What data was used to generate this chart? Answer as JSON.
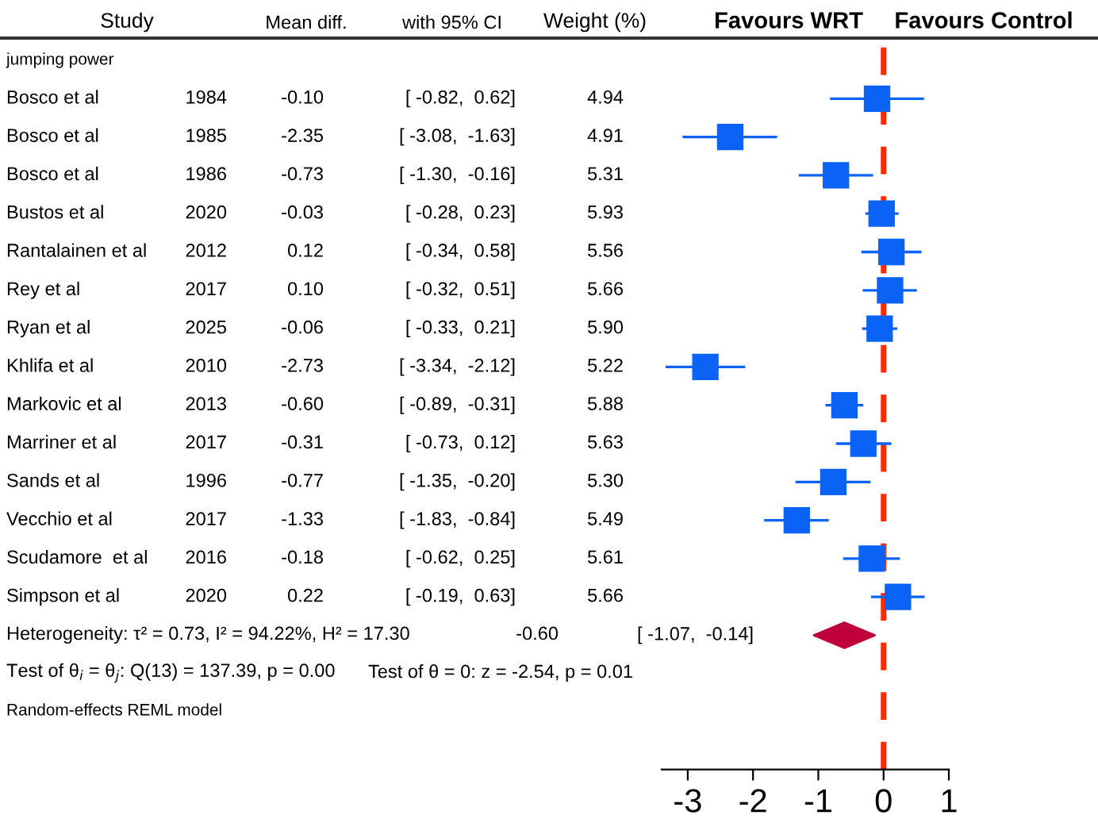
{
  "chart_data": {
    "type": "scatter",
    "orientation": "horizontal",
    "categories": [
      null,
      "Bosco et al 1984",
      "Bosco et al 1985",
      "Bosco et al 1986",
      "Bustos et al 2020",
      "Rantalainen et al 2012",
      "Rey et al 2017",
      "Ryan et al 2025",
      "Khlifa et al 2010",
      "Markovic et al 2013",
      "Marriner et al 2017",
      "Sands et al 1996",
      "Vecchio et al 2017",
      "Scudamore  et al 2016",
      "Simpson et al 2020",
      null,
      null,
      null,
      null
    ],
    "series": [
      {
        "color": "#0b63f6",
        "marker": "square",
        "values": [
          null,
          -0.1,
          -2.35,
          -0.73,
          -0.03,
          0.12,
          0.1,
          -0.06,
          -2.73,
          -0.6,
          -0.31,
          -0.77,
          -1.33,
          -0.18,
          0.22,
          null,
          null,
          null,
          null
        ],
        "errors": [
          null,
          [
            -0.82,
            0.62
          ],
          [
            -3.08,
            -1.63
          ],
          [
            -1.3,
            -0.16
          ],
          [
            -0.28,
            0.23
          ],
          [
            -0.34,
            0.58
          ],
          [
            -0.32,
            0.51
          ],
          [
            -0.33,
            0.21
          ],
          [
            -3.34,
            -2.12
          ],
          [
            -0.89,
            -0.31
          ],
          [
            -0.73,
            0.12
          ],
          [
            -1.35,
            -0.2
          ],
          [
            -1.83,
            -0.84
          ],
          [
            -0.62,
            0.25
          ],
          [
            -0.19,
            0.63
          ],
          null,
          null,
          null,
          null
        ],
        "value_labels": [
          null,
          "-0.10",
          "-2.35",
          "-0.73",
          "-0.03",
          "0.12",
          "0.10",
          "-0.06",
          "-2.73",
          "-0.60",
          "-0.31",
          "-0.77",
          "-1.33",
          "-0.18",
          "0.22",
          null,
          null,
          null,
          null
        ]
      },
      {
        "color": "#c0003a",
        "marker": "diamond",
        "values": [
          null,
          null,
          null,
          null,
          null,
          null,
          null,
          null,
          null,
          null,
          null,
          null,
          null,
          null,
          null,
          -0.6,
          null,
          null,
          null
        ],
        "errors": [
          null,
          null,
          null,
          null,
          null,
          null,
          null,
          null,
          null,
          null,
          null,
          null,
          null,
          null,
          null,
          [
            -1.07,
            -0.14
          ],
          null,
          null,
          null
        ]
      }
    ],
    "xlim": [
      -3.4,
      1.0
    ],
    "xticks": [
      -3,
      -2,
      -1,
      0,
      1
    ],
    "grid": false,
    "legend": false,
    "ref_lines": [
      {
        "axis": "x",
        "value": 0,
        "color": "#ff2a00",
        "line_style": "dashed"
      }
    ],
    "annotations": [
      "Study",
      "Mean diff.",
      "with 95% CI",
      "Weight (%)",
      "Favours WRT",
      "Favours Control",
      "Heterogeneity: τ² = 0.73, I² = 94.22%, H² = 17.30",
      "Test of θ$_{i}$ = θ$_{j}$: Q(13) = 137.39, p = 0.00",
      "Test of θ = 0: z = -2.54, p = 0.01",
      "Random-effects REML model",
      "jumping power",
      "-0.60",
      "[ -0.82,  0.62]",
      "[ -3.08,  -1.63]",
      "[ -1.30,  -0.16]",
      "[ -0.28,  0.23]",
      "[ -0.34,  0.58]",
      "[ -0.32,  0.51]",
      "[ -0.33,  0.21]",
      "[ -3.34,  -2.12]",
      "[ -0.89,  -0.31]",
      "[ -0.73,  0.12]",
      "[ -1.35,  -0.20]",
      "[ -1.83,  -0.84]",
      "[ -0.62,  0.25]",
      "[ -0.19,  0.63]",
      "[ -1.07,  -0.14]",
      "4.94",
      "4.91",
      "5.31",
      "5.93",
      "5.56",
      "5.66",
      "5.90",
      "5.22",
      "5.88",
      "5.63",
      "5.30",
      "5.49",
      "5.61",
      "5.66"
    ]
  }
}
